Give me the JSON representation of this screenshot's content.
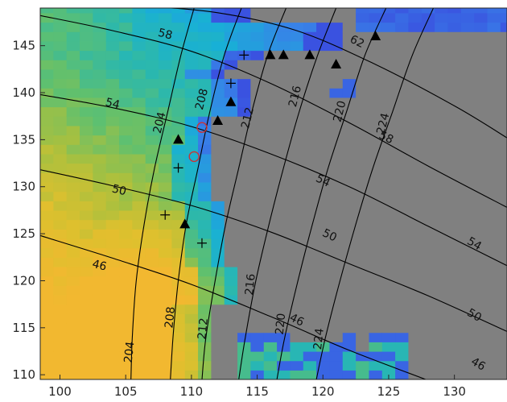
{
  "chart_data": {
    "type": "heatmap",
    "title": "",
    "xlabel": "",
    "ylabel": "",
    "xlim": [
      98.5,
      134
    ],
    "ylim": [
      109.5,
      149
    ],
    "grid": false,
    "xticks": [
      100,
      105,
      110,
      115,
      120,
      125,
      130
    ],
    "yticks": [
      110,
      115,
      120,
      125,
      130,
      135,
      140,
      145
    ],
    "xtick_labels": [
      "100",
      "105",
      "110",
      "115",
      "120",
      "125",
      "130"
    ],
    "ytick_labels": [
      "110",
      "115",
      "120",
      "125",
      "130",
      "135",
      "140",
      "145"
    ],
    "colors": {
      "masked": "#808080",
      "contour": "#000000",
      "circle_marker": "#cc3333",
      "axis": "#262626"
    },
    "field_description_regions": [
      {
        "name": "orange-core",
        "color": "#f2b830"
      },
      {
        "name": "yellow",
        "color": "#d8c02e"
      },
      {
        "name": "yellow-green",
        "color": "#a8c040"
      },
      {
        "name": "green",
        "color": "#58c070"
      },
      {
        "name": "teal",
        "color": "#28b8b0"
      },
      {
        "name": "cyan",
        "color": "#18b0d8"
      },
      {
        "name": "blue",
        "color": "#3878e8"
      },
      {
        "name": "deep-blue",
        "color": "#3a50e0"
      }
    ],
    "contours_set_a": [
      {
        "level": 46,
        "label": "46",
        "points": [
          [
            98.5,
            124.8
          ],
          [
            104,
            122.4
          ],
          [
            110,
            119.6
          ],
          [
            116,
            116.2
          ],
          [
            122,
            112.6
          ],
          [
            128,
            109.4
          ],
          [
            134,
            106.2
          ]
        ],
        "label_at": [
          [
            103,
            121.6
          ],
          [
            118,
            115.8
          ],
          [
            131.8,
            111.1
          ]
        ]
      },
      {
        "level": 50,
        "label": "50",
        "points": [
          [
            98.5,
            131.8
          ],
          [
            104,
            130.1
          ],
          [
            110,
            128
          ],
          [
            116,
            125.2
          ],
          [
            122,
            121.8
          ],
          [
            128,
            118.4
          ],
          [
            134,
            114.6
          ]
        ],
        "label_at": [
          [
            104.5,
            129.6
          ],
          [
            120.5,
            124.8
          ],
          [
            131.5,
            116.3
          ]
        ]
      },
      {
        "level": 54,
        "label": "54",
        "points": [
          [
            98.5,
            139.8
          ],
          [
            104,
            138.4
          ],
          [
            110,
            136.4
          ],
          [
            116,
            133.5
          ],
          [
            122,
            130
          ],
          [
            128,
            125.8
          ],
          [
            134,
            121.6
          ]
        ],
        "label_at": [
          [
            104,
            138.8
          ],
          [
            120,
            130.6
          ],
          [
            131.5,
            123.9
          ]
        ]
      },
      {
        "level": 58,
        "label": "58",
        "points": [
          [
            98.5,
            148.2
          ],
          [
            104,
            146.6
          ],
          [
            110,
            144.4
          ],
          [
            116,
            141
          ],
          [
            122,
            136.8
          ],
          [
            128,
            132.2
          ],
          [
            134,
            127.8
          ]
        ],
        "label_at": [
          [
            108,
            146.2
          ],
          [
            124.8,
            135.2
          ]
        ]
      },
      {
        "level": 62,
        "label": "62",
        "points": [
          [
            100,
            149.4
          ],
          [
            106,
            149.2
          ],
          [
            112,
            148.5
          ],
          [
            118,
            146.6
          ],
          [
            124,
            143
          ],
          [
            130,
            138.6
          ],
          [
            134,
            135.2
          ]
        ],
        "label_at": [
          [
            122.6,
            145.4
          ]
        ]
      }
    ],
    "contours_set_b": [
      {
        "level": 204,
        "label": "204",
        "points": [
          [
            110.2,
            149
          ],
          [
            109.2,
            144
          ],
          [
            108.2,
            138
          ],
          [
            107.2,
            132
          ],
          [
            106.4,
            126
          ],
          [
            105.8,
            120
          ],
          [
            105.5,
            114
          ],
          [
            105.4,
            109.5
          ]
        ],
        "label_at": [
          [
            105.3,
            112.4
          ],
          [
            107.6,
            136.8
          ]
        ]
      },
      {
        "level": 208,
        "label": "208",
        "points": [
          [
            113.8,
            149
          ],
          [
            112.5,
            144
          ],
          [
            111.4,
            138
          ],
          [
            110.5,
            132
          ],
          [
            109.6,
            126
          ],
          [
            109,
            120
          ],
          [
            108.6,
            114
          ],
          [
            108.4,
            109.5
          ]
        ],
        "label_at": [
          [
            108.4,
            116.1
          ],
          [
            110.8,
            139.3
          ]
        ]
      },
      {
        "level": 212,
        "label": "212",
        "points": [
          [
            117.2,
            149
          ],
          [
            115.8,
            144
          ],
          [
            114.6,
            138
          ],
          [
            113.6,
            132
          ],
          [
            112.6,
            126
          ],
          [
            111.8,
            120
          ],
          [
            111.1,
            114
          ],
          [
            110.8,
            109.5
          ]
        ],
        "label_at": [
          [
            110.9,
            114.9
          ],
          [
            114.3,
            137.3
          ]
        ]
      },
      {
        "level": 216,
        "label": "216",
        "points": [
          [
            121,
            149
          ],
          [
            119.6,
            144
          ],
          [
            118.2,
            138
          ],
          [
            117,
            132
          ],
          [
            115.9,
            126
          ],
          [
            114.9,
            120
          ],
          [
            114.1,
            114
          ],
          [
            113.6,
            109.5
          ]
        ],
        "label_at": [
          [
            114.5,
            119.6
          ],
          [
            117.9,
            139.6
          ]
        ]
      },
      {
        "level": 220,
        "label": "220",
        "points": [
          [
            124.8,
            149
          ],
          [
            123.2,
            144
          ],
          [
            121.8,
            138
          ],
          [
            120.4,
            132
          ],
          [
            119.2,
            126
          ],
          [
            118.1,
            120
          ],
          [
            117.1,
            114
          ],
          [
            116.5,
            109.5
          ]
        ],
        "label_at": [
          [
            116.8,
            115.4
          ],
          [
            121.3,
            138
          ]
        ]
      },
      {
        "level": 224,
        "label": "224",
        "points": [
          [
            128.4,
            149
          ],
          [
            126.8,
            144
          ],
          [
            125.3,
            138
          ],
          [
            123.8,
            132
          ],
          [
            122.5,
            126
          ],
          [
            121.3,
            120
          ],
          [
            120.2,
            114
          ],
          [
            119.5,
            109.5
          ]
        ],
        "label_at": [
          [
            119.7,
            113.8
          ],
          [
            124.6,
            136.7
          ]
        ]
      }
    ],
    "markers": {
      "triangles": [
        [
          109,
          135
        ],
        [
          112,
          137
        ],
        [
          113,
          139
        ],
        [
          116,
          144
        ],
        [
          117,
          144
        ],
        [
          119,
          144
        ],
        [
          121,
          143
        ],
        [
          124,
          146
        ],
        [
          109.5,
          126
        ]
      ],
      "plus": [
        [
          114,
          144
        ],
        [
          113,
          141
        ],
        [
          109,
          132
        ],
        [
          108,
          127
        ],
        [
          110.8,
          124
        ]
      ],
      "circles": [
        [
          110.8,
          136.3
        ],
        [
          110.2,
          133.2
        ]
      ]
    }
  }
}
